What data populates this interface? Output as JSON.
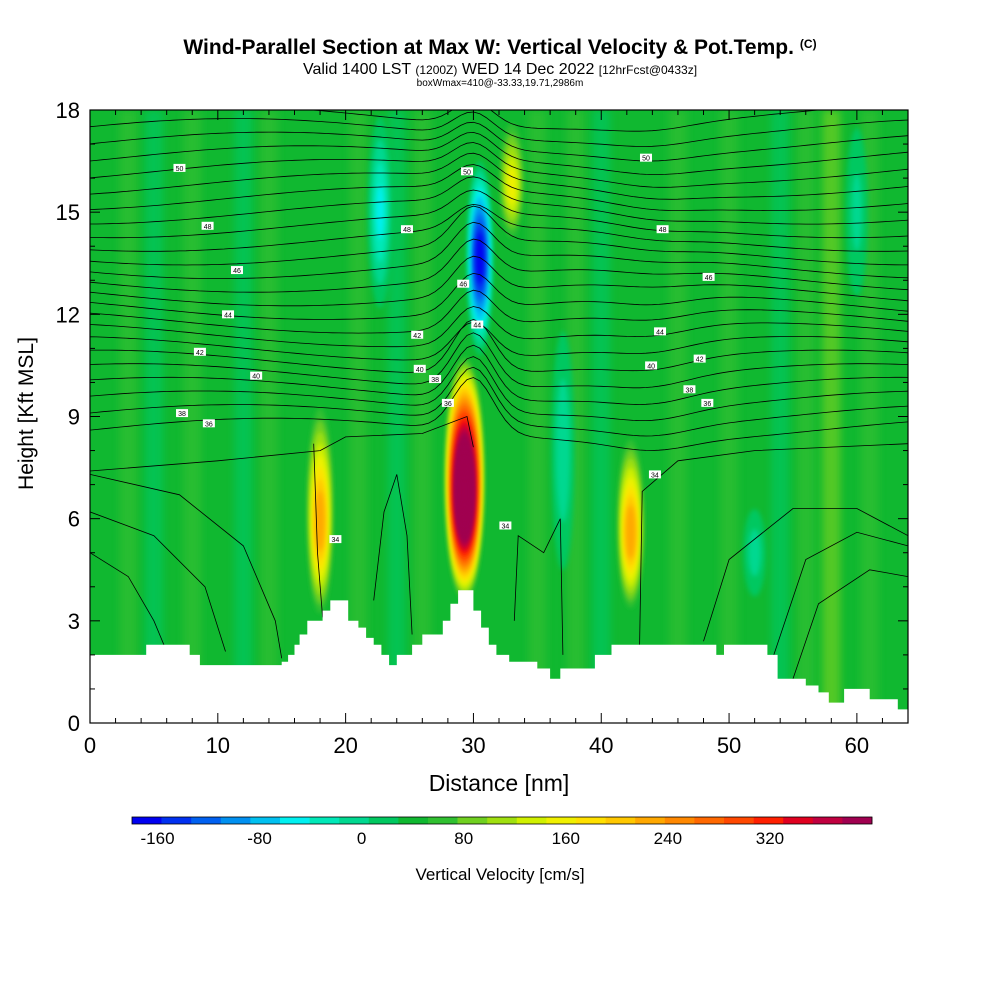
{
  "title": {
    "main": "Wind-Parallel Section at Max W: Vertical Velocity & Pot.Temp.",
    "copyright": "(C)",
    "valid_prefix": "Valid 1400 LST",
    "valid_utc": "(1200Z)",
    "valid_date": "WED 14 Dec 2022",
    "fcst": "[12hrFcst@0433z]",
    "box": "boxWmax=410@-33.33,19.71,2986m"
  },
  "chart_data": {
    "type": "heatmap",
    "title": "Wind-Parallel Section at Max W: Vertical Velocity & Pot.Temp.",
    "xlabel": "Distance [nm]",
    "ylabel": "Height [Kft MSL]",
    "xlim": [
      0,
      64
    ],
    "ylim": [
      0,
      18
    ],
    "xticks": [
      0,
      10,
      20,
      30,
      40,
      50,
      60
    ],
    "yticks": [
      0,
      3,
      6,
      9,
      12,
      15,
      18
    ],
    "colorbar": {
      "label": "Vertical Velocity [cm/s]",
      "ticks": [
        -160,
        -80,
        0,
        80,
        160,
        240,
        320
      ],
      "min": -180,
      "max": 400,
      "step": 20,
      "colors": [
        "#0000f0",
        "#0030f0",
        "#0060f0",
        "#0090f0",
        "#00c0f0",
        "#00f0f0",
        "#00e8b8",
        "#00d890",
        "#00c860",
        "#10b830",
        "#30c030",
        "#70d020",
        "#a0e010",
        "#d0f000",
        "#f0f000",
        "#ffe000",
        "#ffc800",
        "#ffa800",
        "#ff8800",
        "#ff6800",
        "#ff4800",
        "#ff2000",
        "#e00020",
        "#c00040",
        "#a00050"
      ]
    },
    "updrafts": [
      {
        "x": 18,
        "z_bottom": 3.0,
        "z_top": 9.6,
        "w_max": 170
      },
      {
        "x": 29.3,
        "z_bottom": 3.6,
        "z_top": 10.8,
        "w_max": 410
      },
      {
        "x": 42.3,
        "z_bottom": 3.2,
        "z_top": 8.6,
        "w_max": 175
      },
      {
        "x": 33,
        "z_bottom": 14.0,
        "z_top": 18.0,
        "w_max": 110
      }
    ],
    "downdrafts": [
      {
        "x": 30.5,
        "z_bottom": 10.8,
        "z_top": 16.5,
        "w_min": -170
      },
      {
        "x": 22.7,
        "z_bottom": 12.0,
        "z_top": 18.0,
        "w_min": -70
      },
      {
        "x": 37.0,
        "z_bottom": 4.0,
        "z_top": 12.0,
        "w_min": -45
      },
      {
        "x": 52.0,
        "z_bottom": 3.5,
        "z_top": 6.5,
        "w_min": -40
      },
      {
        "x": 60.0,
        "z_bottom": 12.0,
        "z_top": 18.0,
        "w_min": -35
      }
    ],
    "theta_contours": {
      "interval_c": 2,
      "labels": [
        {
          "x": 7,
          "z": 16.3,
          "text": "50"
        },
        {
          "x": 9.2,
          "z": 14.6,
          "text": "48"
        },
        {
          "x": 11.5,
          "z": 13.3,
          "text": "46"
        },
        {
          "x": 10.8,
          "z": 12.0,
          "text": "44"
        },
        {
          "x": 8.6,
          "z": 10.9,
          "text": "42"
        },
        {
          "x": 13.0,
          "z": 10.2,
          "text": "40"
        },
        {
          "x": 7.2,
          "z": 9.1,
          "text": "38"
        },
        {
          "x": 9.3,
          "z": 8.8,
          "text": "36"
        },
        {
          "x": 29.5,
          "z": 16.2,
          "text": "50"
        },
        {
          "x": 24.8,
          "z": 14.5,
          "text": "48"
        },
        {
          "x": 29.2,
          "z": 12.9,
          "text": "46"
        },
        {
          "x": 30.3,
          "z": 11.7,
          "text": "44"
        },
        {
          "x": 25.6,
          "z": 11.4,
          "text": "42"
        },
        {
          "x": 25.8,
          "z": 10.4,
          "text": "40"
        },
        {
          "x": 27.0,
          "z": 10.1,
          "text": "38"
        },
        {
          "x": 28.0,
          "z": 9.4,
          "text": "36"
        },
        {
          "x": 43.5,
          "z": 16.6,
          "text": "50"
        },
        {
          "x": 44.8,
          "z": 14.5,
          "text": "48"
        },
        {
          "x": 48.4,
          "z": 13.1,
          "text": "46"
        },
        {
          "x": 44.6,
          "z": 11.5,
          "text": "44"
        },
        {
          "x": 47.7,
          "z": 10.7,
          "text": "42"
        },
        {
          "x": 43.9,
          "z": 10.5,
          "text": "40"
        },
        {
          "x": 46.9,
          "z": 9.8,
          "text": "38"
        },
        {
          "x": 48.3,
          "z": 9.4,
          "text": "36"
        },
        {
          "x": 19.2,
          "z": 5.4,
          "text": "34"
        },
        {
          "x": 44.2,
          "z": 7.3,
          "text": "34"
        },
        {
          "x": 32.5,
          "z": 5.8,
          "text": "34"
        }
      ]
    },
    "terrain": [
      [
        0,
        2.0
      ],
      [
        4.4,
        2.0
      ],
      [
        4.4,
        2.3
      ],
      [
        7.8,
        2.3
      ],
      [
        7.8,
        2.0
      ],
      [
        8.6,
        2.0
      ],
      [
        8.6,
        1.7
      ],
      [
        15.0,
        1.7
      ],
      [
        15.0,
        1.8
      ],
      [
        15.5,
        1.8
      ],
      [
        15.5,
        2.0
      ],
      [
        16.0,
        2.0
      ],
      [
        16.0,
        2.3
      ],
      [
        16.4,
        2.3
      ],
      [
        16.4,
        2.6
      ],
      [
        17.0,
        2.6
      ],
      [
        17.0,
        3.0
      ],
      [
        18.2,
        3.0
      ],
      [
        18.2,
        3.3
      ],
      [
        18.8,
        3.3
      ],
      [
        18.8,
        3.6
      ],
      [
        20.2,
        3.6
      ],
      [
        20.2,
        3.0
      ],
      [
        21.0,
        3.0
      ],
      [
        21.0,
        2.8
      ],
      [
        21.6,
        2.8
      ],
      [
        21.6,
        2.5
      ],
      [
        22.2,
        2.5
      ],
      [
        22.2,
        2.3
      ],
      [
        22.8,
        2.3
      ],
      [
        22.8,
        2.0
      ],
      [
        23.4,
        2.0
      ],
      [
        23.4,
        1.7
      ],
      [
        24.0,
        1.7
      ],
      [
        24.0,
        2.0
      ],
      [
        25.2,
        2.0
      ],
      [
        25.2,
        2.3
      ],
      [
        26.0,
        2.3
      ],
      [
        26.0,
        2.6
      ],
      [
        27.6,
        2.6
      ],
      [
        27.6,
        3.0
      ],
      [
        28.2,
        3.0
      ],
      [
        28.2,
        3.5
      ],
      [
        28.8,
        3.5
      ],
      [
        28.8,
        3.9
      ],
      [
        30.0,
        3.9
      ],
      [
        30.0,
        3.3
      ],
      [
        30.6,
        3.3
      ],
      [
        30.6,
        2.8
      ],
      [
        31.2,
        2.8
      ],
      [
        31.2,
        2.3
      ],
      [
        31.8,
        2.3
      ],
      [
        31.8,
        2.0
      ],
      [
        32.8,
        2.0
      ],
      [
        32.8,
        1.8
      ],
      [
        35.0,
        1.8
      ],
      [
        35.0,
        1.6
      ],
      [
        36.0,
        1.6
      ],
      [
        36.0,
        1.3
      ],
      [
        36.8,
        1.3
      ],
      [
        36.8,
        1.6
      ],
      [
        39.5,
        1.6
      ],
      [
        39.5,
        2.0
      ],
      [
        40.8,
        2.0
      ],
      [
        40.8,
        2.3
      ],
      [
        49.0,
        2.3
      ],
      [
        49.0,
        2.0
      ],
      [
        49.6,
        2.0
      ],
      [
        49.6,
        2.3
      ],
      [
        53.0,
        2.3
      ],
      [
        53.0,
        2.0
      ],
      [
        53.8,
        2.0
      ],
      [
        53.8,
        1.3
      ],
      [
        56.0,
        1.3
      ],
      [
        56.0,
        1.1
      ],
      [
        57.0,
        1.1
      ],
      [
        57.0,
        0.9
      ],
      [
        57.8,
        0.9
      ],
      [
        57.8,
        0.6
      ],
      [
        59.0,
        0.6
      ],
      [
        59.0,
        1.0
      ],
      [
        61.0,
        1.0
      ],
      [
        61.0,
        0.7
      ],
      [
        63.2,
        0.7
      ],
      [
        63.2,
        0.4
      ],
      [
        64,
        0.4
      ]
    ]
  }
}
